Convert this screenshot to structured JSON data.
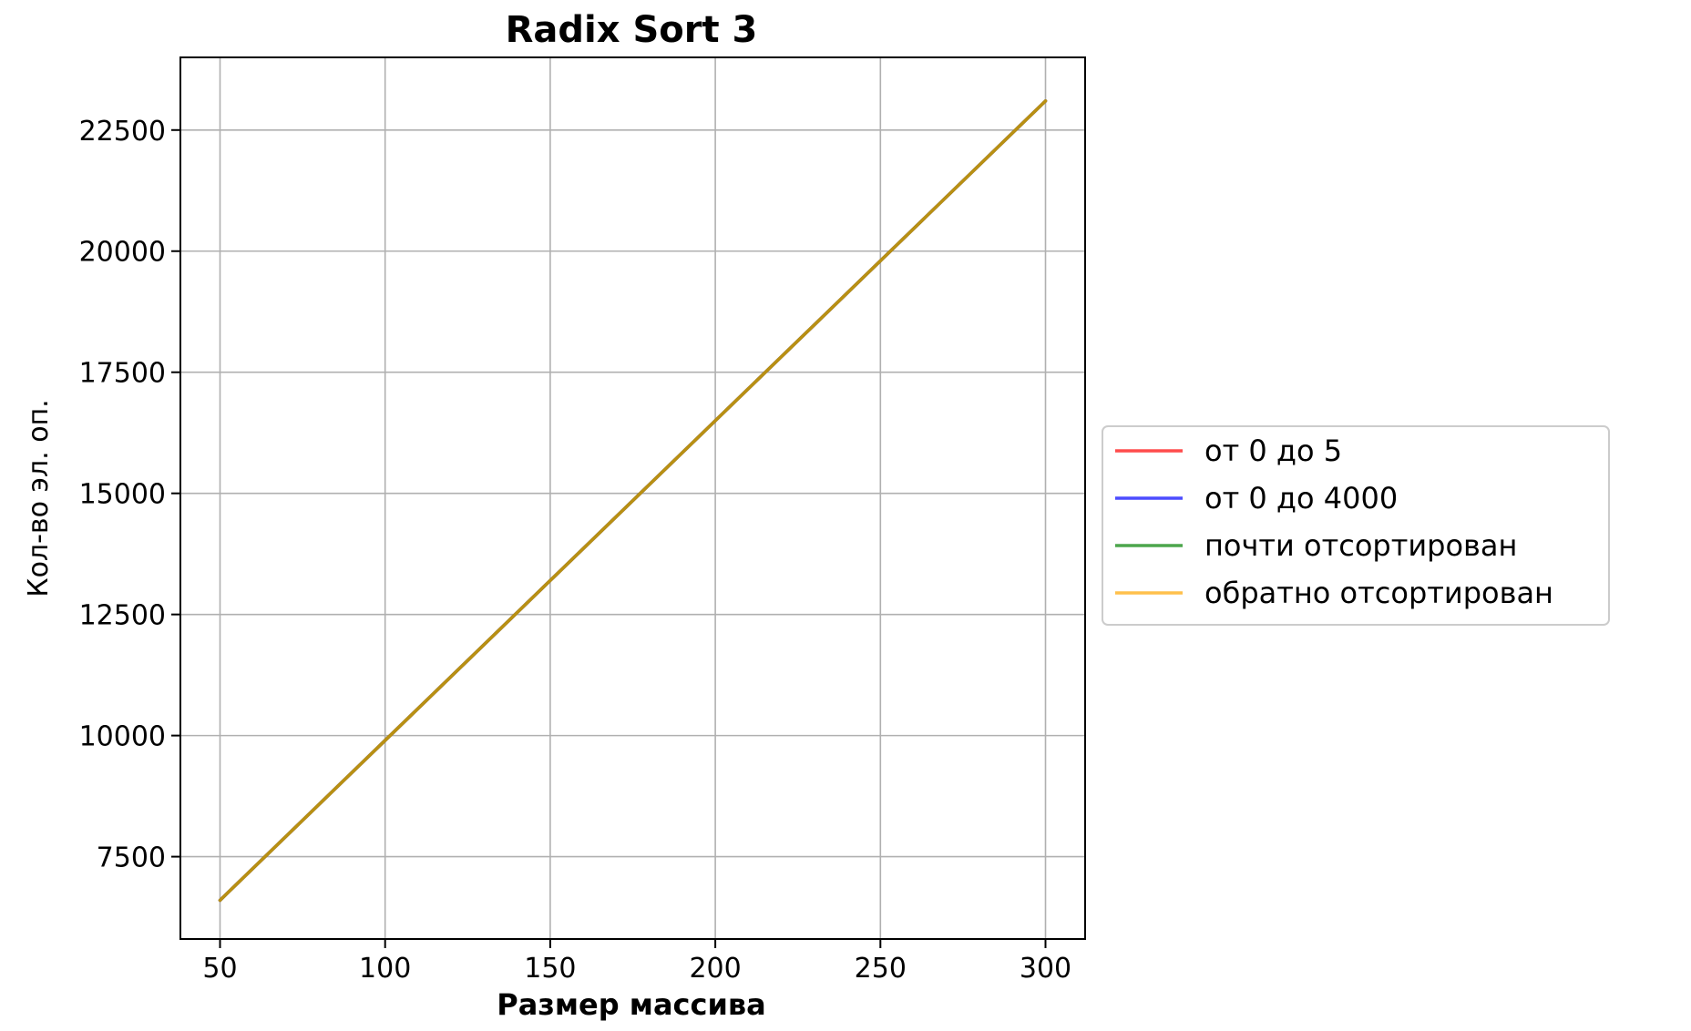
{
  "chart_data": {
    "type": "line",
    "title": "Radix Sort 3",
    "xlabel": "Размер массива",
    "ylabel": "Кол-во эл. оп.",
    "xlim": [
      38,
      312
    ],
    "ylim": [
      5800,
      24000
    ],
    "x_ticks": [
      50,
      100,
      150,
      200,
      250,
      300
    ],
    "y_ticks": [
      7500,
      10000,
      12500,
      15000,
      17500,
      20000,
      22500
    ],
    "x_tick_labels": [
      "50",
      "100",
      "150",
      "200",
      "250",
      "300"
    ],
    "y_tick_labels": [
      "7500",
      "10000",
      "12500",
      "15000",
      "17500",
      "20000",
      "22500"
    ],
    "grid": true,
    "legend_position": "center-right (outside plot)",
    "x": [
      50,
      100,
      150,
      200,
      250,
      300
    ],
    "series": [
      {
        "name": "от 0 до 5",
        "color": "#ff0000",
        "values": [
          6600,
          9900,
          13200,
          16500,
          19800,
          23100
        ]
      },
      {
        "name": "от 0 до 4000",
        "color": "#0000ff",
        "values": [
          6600,
          9900,
          13200,
          16500,
          19800,
          23100
        ]
      },
      {
        "name": "почти отсортирован",
        "color": "#008000",
        "values": [
          6600,
          9900,
          13200,
          16500,
          19800,
          23100
        ]
      },
      {
        "name": "обратно отсортирован",
        "color": "#ffa500",
        "values": [
          6600,
          9900,
          13200,
          16500,
          19800,
          23100
        ]
      }
    ]
  }
}
